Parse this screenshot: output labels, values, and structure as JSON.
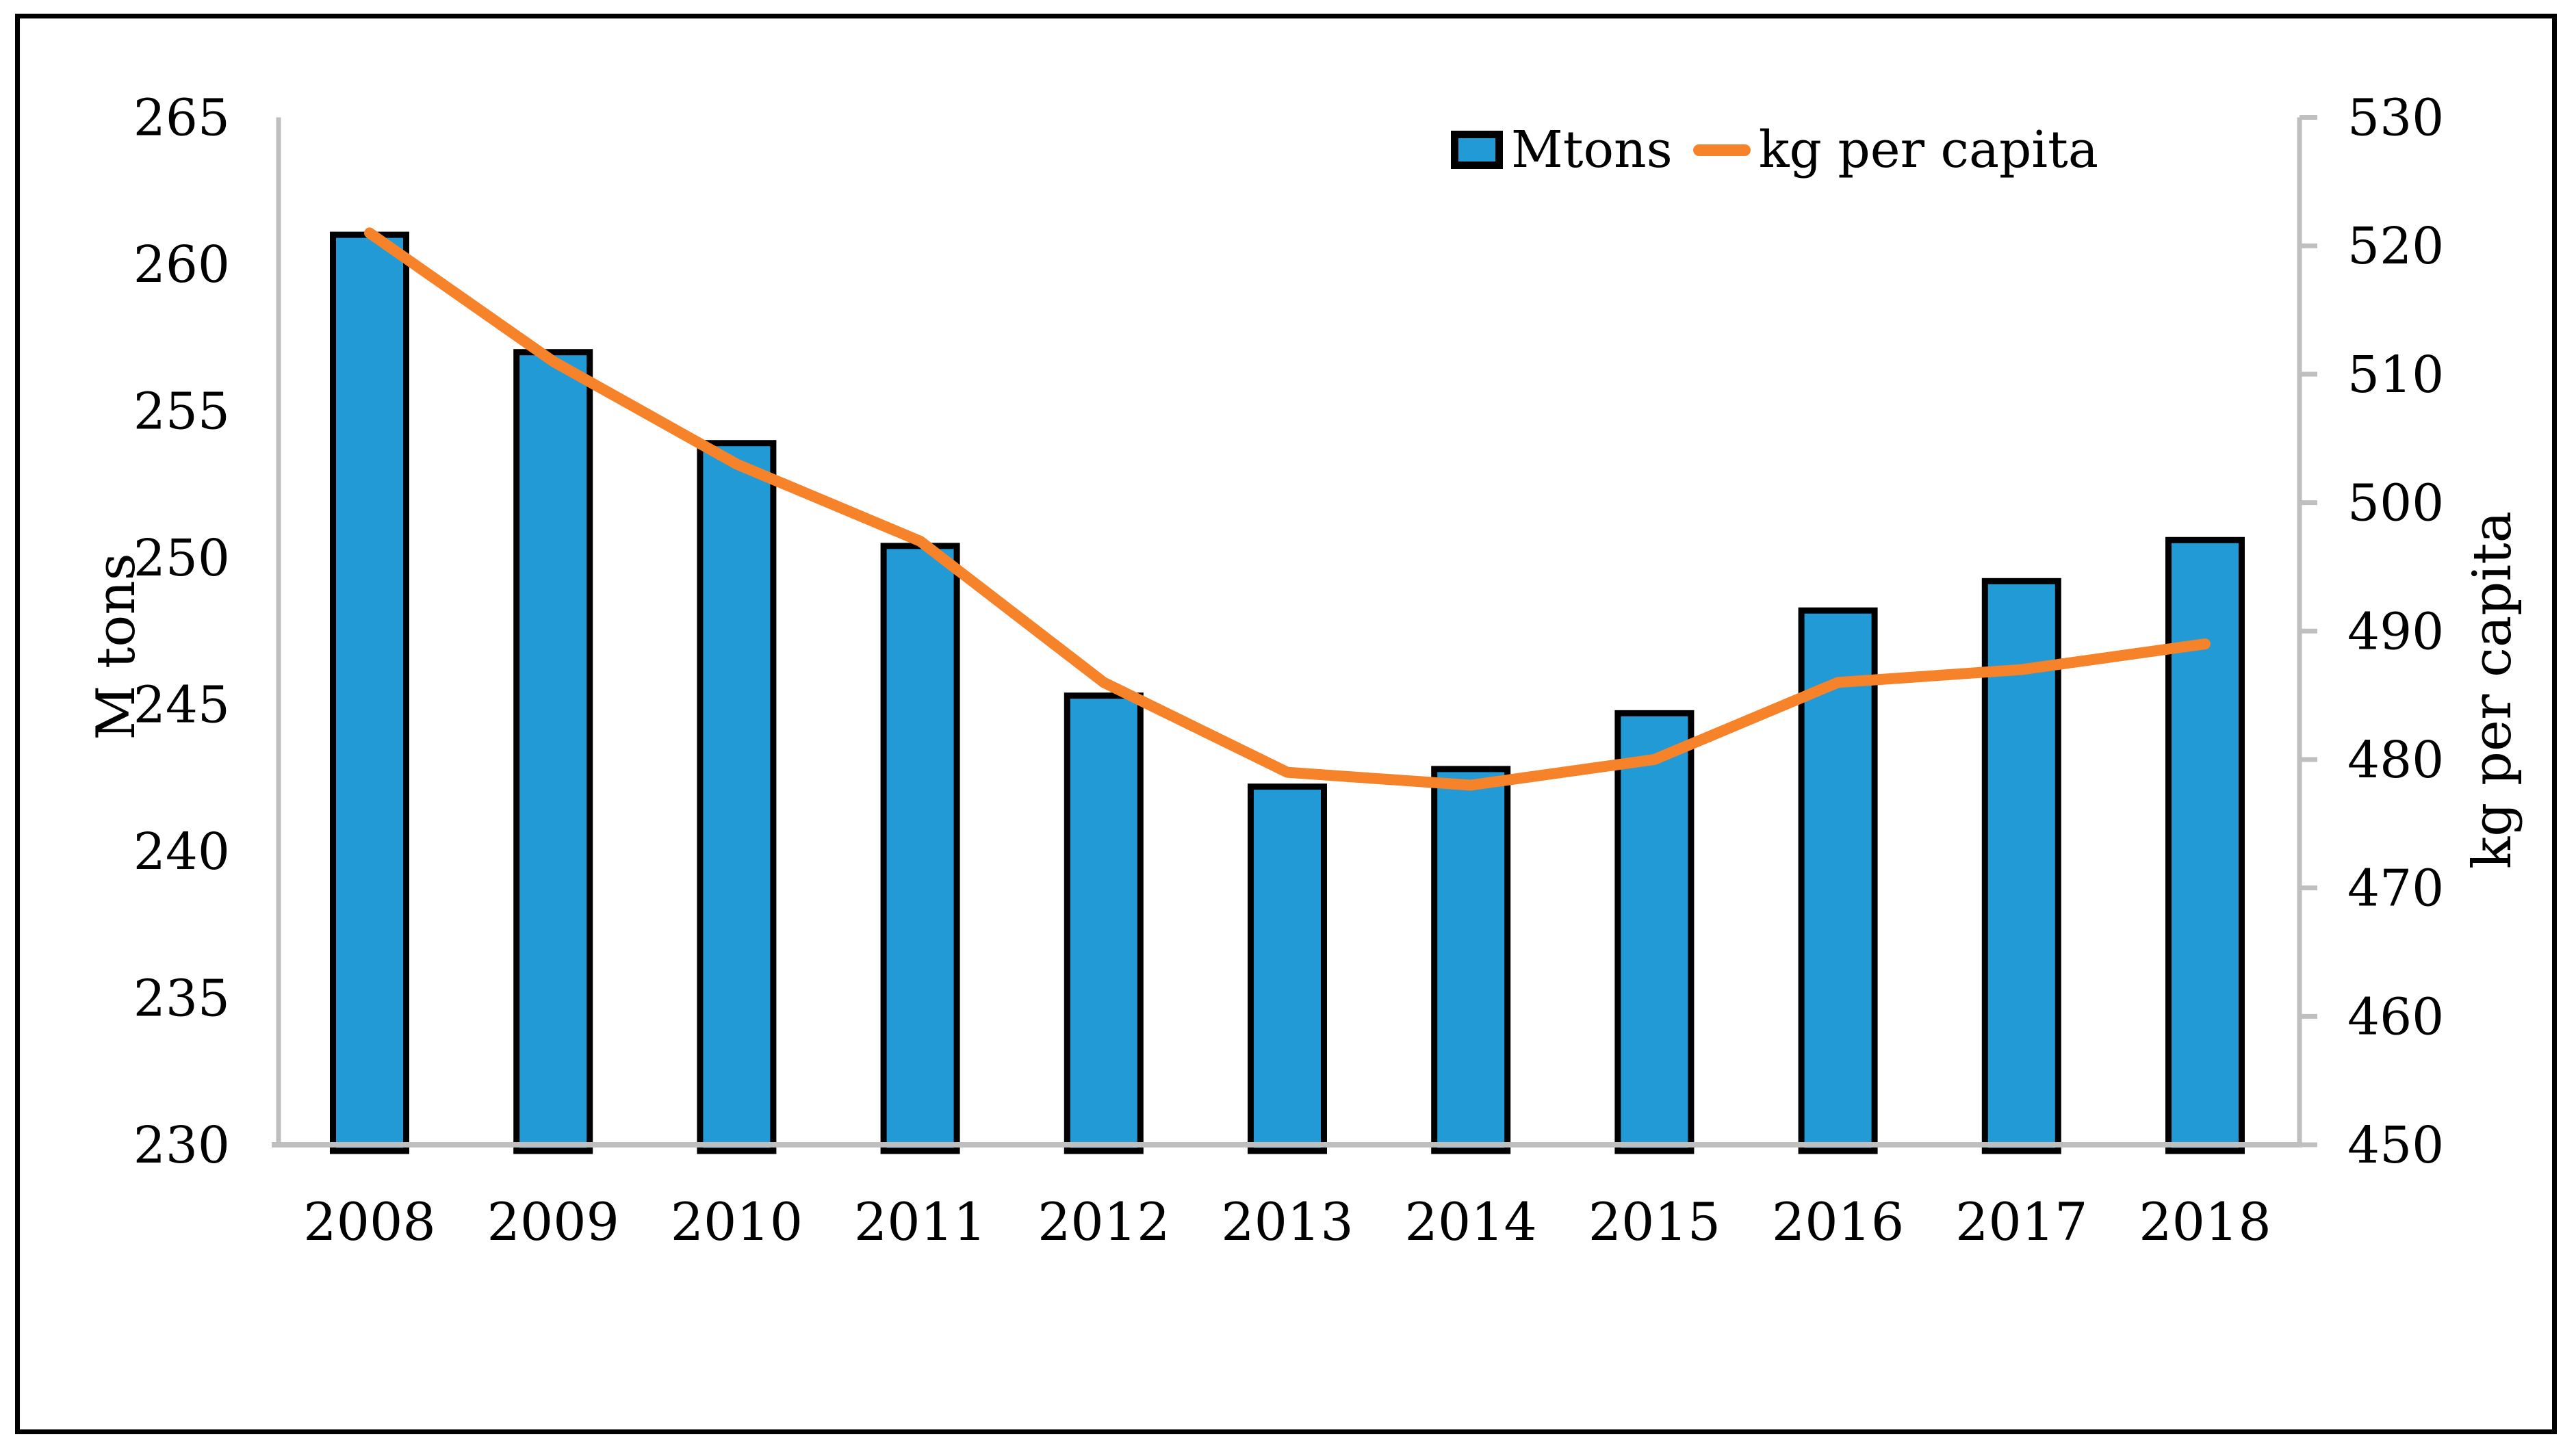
{
  "chart_data": {
    "type": "combo-bar-line",
    "categories": [
      "2008",
      "2009",
      "2010",
      "2011",
      "2012",
      "2013",
      "2014",
      "2015",
      "2016",
      "2017",
      "2018"
    ],
    "series": [
      {
        "name": "Mtons",
        "type": "bar",
        "axis": "left",
        "values": [
          261.0,
          257.0,
          253.9,
          250.4,
          245.3,
          242.2,
          242.8,
          244.7,
          248.2,
          249.2,
          250.6
        ]
      },
      {
        "name": "kg per capita",
        "type": "line",
        "axis": "right",
        "values": [
          521,
          511,
          503,
          497,
          486,
          479,
          478,
          480,
          486,
          487,
          489
        ]
      }
    ],
    "title": "",
    "xlabel": "",
    "ylabel_left": "M tons",
    "ylabel_right": "kg per capita",
    "axis_left": {
      "min": 230,
      "max": 265,
      "step": 5,
      "ticks": [
        "230",
        "235",
        "240",
        "245",
        "250",
        "255",
        "260",
        "265"
      ]
    },
    "axis_right": {
      "min": 450,
      "max": 530,
      "step": 10,
      "ticks": [
        "450",
        "460",
        "470",
        "480",
        "490",
        "500",
        "510",
        "520",
        "530"
      ]
    },
    "legend_position": "top-right-inside",
    "grid": "off",
    "colors": {
      "bar_fill": "#219AD6",
      "bar_border": "#000000",
      "line": "#F6822A",
      "axis_line": "#BFBFBF",
      "text": "#000000",
      "frame_border": "#000000"
    }
  }
}
